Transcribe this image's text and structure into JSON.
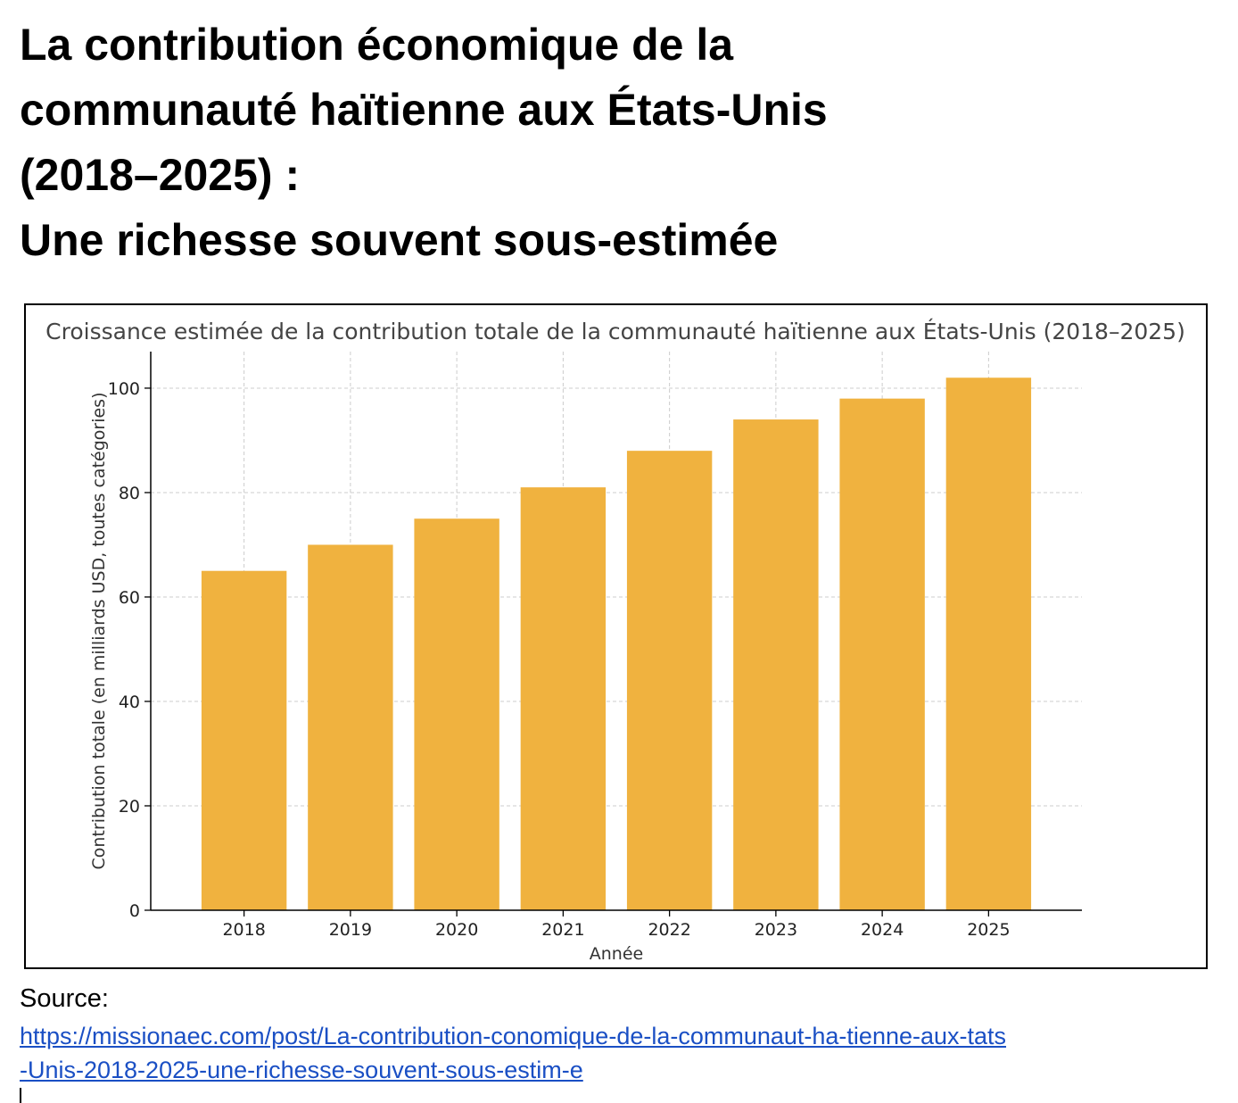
{
  "heading": {
    "lines": [
      "La contribution économique de la",
      "communauté haïtienne aux États-Unis",
      "(2018–2025) :",
      "Une richesse souvent sous-estimée"
    ]
  },
  "source": {
    "label": "Source:",
    "link_lines": [
      "https://missionaec.com/post/La-contribution-conomique-de-la-communaut-ha-tienne-aux-tats",
      "-Unis-2018-2025-une-richesse-souvent-sous-estim-e"
    ]
  },
  "colors": {
    "bar": "#f0b23f",
    "grid": "#cccccc",
    "link": "#1a4fc4"
  },
  "chart_data": {
    "type": "bar",
    "title": "Croissance estimée de la contribution totale de la communauté haïtienne aux États-Unis (2018–2025)",
    "xlabel": "Année",
    "ylabel": "Contribution totale (en milliards USD, toutes catégories)",
    "categories": [
      "2018",
      "2019",
      "2020",
      "2021",
      "2022",
      "2023",
      "2024",
      "2025"
    ],
    "values": [
      65,
      70,
      75,
      81,
      88,
      94,
      98,
      102
    ],
    "ylim": [
      0,
      107
    ],
    "yticks": [
      0,
      20,
      40,
      60,
      80,
      100
    ],
    "grid": true,
    "legend": "none"
  }
}
